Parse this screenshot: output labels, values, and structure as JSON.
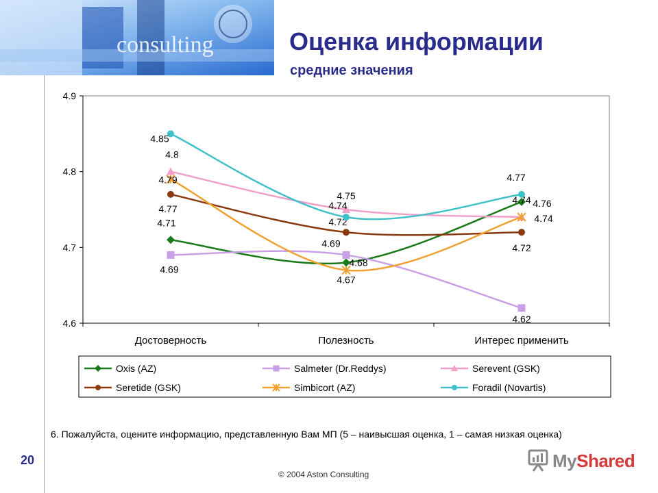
{
  "header": {
    "title": "Оценка информации",
    "subtitle": "средние значения",
    "banner_text": "consulting"
  },
  "colors": {
    "title": "#2a2c8c",
    "oxis": "#1a7a1a",
    "salmeter": "#c9a0e6",
    "serevent": "#f0a0c8",
    "seretide": "#8b3a10",
    "simbicort": "#f0a030",
    "foradil": "#40c0c8"
  },
  "chart_data": {
    "type": "line",
    "title": "",
    "xlabel": "",
    "ylabel": "",
    "ylim": [
      4.6,
      4.9
    ],
    "yticks": [
      "4.6",
      "4.7",
      "4.8",
      "4.9"
    ],
    "categories": [
      "Достоверность",
      "Полезность",
      "Интерес применить"
    ],
    "legend_position": "bottom",
    "series": [
      {
        "name": "Oxis (AZ)",
        "marker": "diamond",
        "values": [
          4.71,
          4.68,
          4.76
        ],
        "labels": [
          "4.71",
          "4.68",
          "4.76"
        ]
      },
      {
        "name": "Salmeter (Dr.Reddys)",
        "marker": "square",
        "values": [
          4.69,
          4.69,
          4.62
        ],
        "labels": [
          "4.69",
          "4.69",
          "4.62"
        ]
      },
      {
        "name": "Serevent (GSK)",
        "marker": "triangle",
        "values": [
          4.8,
          4.75,
          4.74
        ],
        "labels": [
          "4.8",
          "4.75",
          "4.74"
        ]
      },
      {
        "name": "Seretide (GSK)",
        "marker": "circle",
        "values": [
          4.77,
          4.72,
          4.72
        ],
        "labels": [
          "4.77",
          "4.72",
          "4.72"
        ]
      },
      {
        "name": "Simbicort (AZ)",
        "marker": "star",
        "values": [
          4.79,
          4.67,
          4.74
        ],
        "labels": [
          "4.79",
          "4.67",
          "4.74"
        ]
      },
      {
        "name": "Foradil (Novartis)",
        "marker": "circle",
        "values": [
          4.85,
          4.74,
          4.77
        ],
        "labels": [
          "4.85",
          "4.74",
          "4.77"
        ]
      }
    ]
  },
  "footer": {
    "question": "6. Пожалуйста, оцените информацию, представленную Вам МП (5 – наивысшая оценка, 1 – самая низкая оценка)",
    "page_number": "20",
    "copyright": "© 2004  Aston Consulting",
    "watermark_prefix": "My",
    "watermark_suffix": "Shared"
  }
}
